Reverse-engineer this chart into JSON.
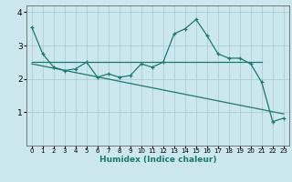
{
  "xlabel": "Humidex (Indice chaleur)",
  "xlim": [
    -0.5,
    23.5
  ],
  "ylim": [
    0,
    4.2
  ],
  "yticks": [
    1,
    2,
    3,
    4
  ],
  "xticks": [
    0,
    1,
    2,
    3,
    4,
    5,
    6,
    7,
    8,
    9,
    10,
    11,
    12,
    13,
    14,
    15,
    16,
    17,
    18,
    19,
    20,
    21,
    22,
    23
  ],
  "bg_color": "#cce8ee",
  "grid_color": "#aacdd5",
  "line_color": "#1a7a6e",
  "series1": {
    "x": [
      0,
      1,
      2,
      3,
      4,
      5,
      6,
      7,
      8,
      9,
      10,
      11,
      12,
      13,
      14,
      15,
      16,
      17,
      18,
      19,
      20,
      21,
      22,
      23
    ],
    "y": [
      3.55,
      2.75,
      2.35,
      2.25,
      2.3,
      2.5,
      2.05,
      2.15,
      2.05,
      2.1,
      2.45,
      2.35,
      2.5,
      3.35,
      3.5,
      3.78,
      3.3,
      2.75,
      2.62,
      2.62,
      2.45,
      1.9,
      0.72,
      0.82
    ]
  },
  "series2": {
    "x": [
      0,
      21
    ],
    "y": [
      2.52,
      2.52
    ]
  },
  "series3": {
    "x": [
      0,
      23
    ],
    "y": [
      2.45,
      0.95
    ]
  }
}
